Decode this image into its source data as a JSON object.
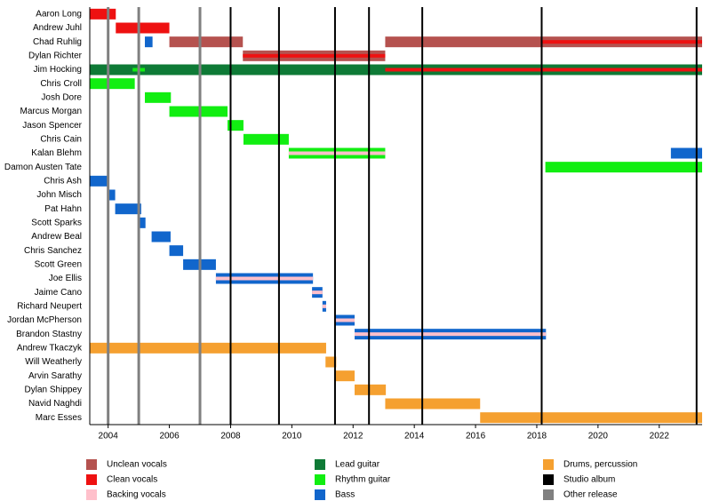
{
  "chart_data": {
    "type": "timeline",
    "xlim": [
      2003.4,
      2023.4
    ],
    "xticks": [
      2004,
      2006,
      2008,
      2010,
      2012,
      2014,
      2016,
      2018,
      2020,
      2022
    ],
    "roles": [
      {
        "name": "Unclean vocals",
        "color": "#b5524f"
      },
      {
        "name": "Clean vocals",
        "color": "#ee1111"
      },
      {
        "name": "Backing vocals",
        "color": "#ffc0cb"
      },
      {
        "name": "Lead guitar",
        "color": "#0e7a36"
      },
      {
        "name": "Rhythm guitar",
        "color": "#11ee11"
      },
      {
        "name": "Bass",
        "color": "#1166cc"
      }
    ],
    "releases": [
      {
        "name": "Drums, percussion",
        "color": "#f5a030",
        "role": true
      },
      {
        "name": "Studio album",
        "color": "#000000",
        "years": [
          2008.0,
          2009.58,
          2011.41,
          2012.52,
          2014.26,
          2018.16,
          2023.22
        ]
      },
      {
        "name": "Other release",
        "color": "#808080",
        "years": [
          2004.0,
          2005.0,
          2007.0
        ]
      }
    ],
    "members": [
      {
        "name": "Aaron Long",
        "periods": [
          {
            "role": "Clean vocals",
            "start": 2003.4,
            "end": 2004.25
          }
        ]
      },
      {
        "name": "Andrew Juhl",
        "periods": [
          {
            "role": "Clean vocals",
            "start": 2004.25,
            "end": 2006.0
          }
        ]
      },
      {
        "name": "Chad Ruhlig",
        "periods": [
          {
            "role": "Bass",
            "start": 2005.2,
            "end": 2005.45
          },
          {
            "role": "Unclean vocals",
            "start": 2006.0,
            "end": 2008.4
          },
          {
            "role": "Unclean vocals",
            "start": 2013.05,
            "end": 2023.4
          }
        ],
        "overlays": [
          {
            "role": "Clean vocals",
            "start": 2018.15,
            "end": 2023.4
          }
        ]
      },
      {
        "name": "Dylan Richter",
        "periods": [
          {
            "role": "Unclean vocals",
            "start": 2008.4,
            "end": 2013.05
          }
        ],
        "overlays": [
          {
            "role": "Clean vocals",
            "start": 2008.4,
            "end": 2013.05
          }
        ]
      },
      {
        "name": "Jim Hocking",
        "periods": [
          {
            "role": "Lead guitar",
            "start": 2003.4,
            "end": 2023.4
          }
        ],
        "overlays": [
          {
            "role": "Rhythm guitar",
            "start": 2004.8,
            "end": 2005.2
          },
          {
            "role": "Clean vocals",
            "start": 2013.05,
            "end": 2023.4
          }
        ]
      },
      {
        "name": "Chris Croll",
        "periods": [
          {
            "role": "Rhythm guitar",
            "start": 2003.4,
            "end": 2004.87
          }
        ]
      },
      {
        "name": "Josh Dore",
        "periods": [
          {
            "role": "Rhythm guitar",
            "start": 2005.2,
            "end": 2006.05
          }
        ]
      },
      {
        "name": "Marcus Morgan",
        "periods": [
          {
            "role": "Rhythm guitar",
            "start": 2006.0,
            "end": 2007.9
          }
        ]
      },
      {
        "name": "Jason Spencer",
        "periods": [
          {
            "role": "Rhythm guitar",
            "start": 2007.9,
            "end": 2008.42
          }
        ]
      },
      {
        "name": "Chris Cain",
        "periods": [
          {
            "role": "Rhythm guitar",
            "start": 2008.42,
            "end": 2009.9
          }
        ]
      },
      {
        "name": "Kalan Blehm",
        "periods": [
          {
            "role": "Rhythm guitar",
            "start": 2009.9,
            "end": 2013.05
          },
          {
            "role": "Bass",
            "start": 2022.38,
            "end": 2023.4
          }
        ],
        "overlays": [
          {
            "role": "Backing vocals",
            "start": 2009.9,
            "end": 2013.05
          }
        ]
      },
      {
        "name": "Damon Austen Tate",
        "periods": [
          {
            "role": "Rhythm guitar",
            "start": 2018.28,
            "end": 2023.4
          }
        ]
      },
      {
        "name": "Chris Ash",
        "periods": [
          {
            "role": "Bass",
            "start": 2003.4,
            "end": 2004.0
          }
        ]
      },
      {
        "name": "John Misch",
        "periods": [
          {
            "role": "Bass",
            "start": 2004.0,
            "end": 2004.23
          }
        ]
      },
      {
        "name": "Pat Hahn",
        "periods": [
          {
            "role": "Bass",
            "start": 2004.23,
            "end": 2005.08
          }
        ]
      },
      {
        "name": "Scott Sparks",
        "periods": [
          {
            "role": "Bass",
            "start": 2005.02,
            "end": 2005.22
          }
        ]
      },
      {
        "name": "Andrew Beal",
        "periods": [
          {
            "role": "Bass",
            "start": 2005.42,
            "end": 2006.04
          }
        ]
      },
      {
        "name": "Chris Sanchez",
        "periods": [
          {
            "role": "Bass",
            "start": 2006.0,
            "end": 2006.45
          }
        ]
      },
      {
        "name": "Scott Green",
        "periods": [
          {
            "role": "Bass",
            "start": 2006.45,
            "end": 2007.52
          }
        ]
      },
      {
        "name": "Joe Ellis",
        "periods": [
          {
            "role": "Bass",
            "start": 2007.52,
            "end": 2010.69
          }
        ],
        "overlays": [
          {
            "role": "Backing vocals",
            "start": 2007.52,
            "end": 2010.69
          }
        ]
      },
      {
        "name": "Jaime Cano",
        "periods": [
          {
            "role": "Bass",
            "start": 2010.66,
            "end": 2011.0
          }
        ],
        "overlays": [
          {
            "role": "Backing vocals",
            "start": 2010.66,
            "end": 2011.0
          }
        ]
      },
      {
        "name": "Richard Neupert",
        "periods": [
          {
            "role": "Bass",
            "start": 2011.0,
            "end": 2011.12
          }
        ],
        "overlays": [
          {
            "role": "Backing vocals",
            "start": 2011.0,
            "end": 2011.12
          }
        ]
      },
      {
        "name": "Jordan McPherson",
        "periods": [
          {
            "role": "Bass",
            "start": 2011.41,
            "end": 2012.05
          }
        ],
        "overlays": [
          {
            "role": "Backing vocals",
            "start": 2011.41,
            "end": 2012.05
          }
        ]
      },
      {
        "name": "Brandon Stastny",
        "periods": [
          {
            "role": "Bass",
            "start": 2012.05,
            "end": 2018.3
          }
        ],
        "overlays": [
          {
            "role": "Backing vocals",
            "start": 2012.05,
            "end": 2018.3
          }
        ]
      },
      {
        "name": "Andrew Tkaczyk",
        "periods": [
          {
            "role": "Drums, percussion",
            "start": 2003.4,
            "end": 2011.12
          }
        ]
      },
      {
        "name": "Will Weatherly",
        "periods": [
          {
            "role": "Drums, percussion",
            "start": 2011.1,
            "end": 2011.45
          }
        ]
      },
      {
        "name": "Arvin Sarathy",
        "periods": [
          {
            "role": "Drums, percussion",
            "start": 2011.41,
            "end": 2012.05
          }
        ]
      },
      {
        "name": "Dylan Shippey",
        "periods": [
          {
            "role": "Drums, percussion",
            "start": 2012.05,
            "end": 2013.07
          }
        ]
      },
      {
        "name": "Navid Naghdi",
        "periods": [
          {
            "role": "Drums, percussion",
            "start": 2013.05,
            "end": 2016.15
          }
        ]
      },
      {
        "name": "Marc Esses",
        "periods": [
          {
            "role": "Drums, percussion",
            "start": 2016.15,
            "end": 2023.4
          }
        ]
      }
    ]
  }
}
